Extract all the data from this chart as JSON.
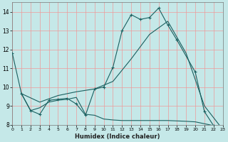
{
  "xlabel": "Humidex (Indice chaleur)",
  "xlim": [
    0,
    23
  ],
  "ylim": [
    8,
    14.5
  ],
  "yticks": [
    8,
    9,
    10,
    11,
    12,
    13,
    14
  ],
  "xticks": [
    0,
    1,
    2,
    3,
    4,
    5,
    6,
    7,
    8,
    9,
    10,
    11,
    12,
    13,
    14,
    15,
    16,
    17,
    18,
    19,
    20,
    21,
    22,
    23
  ],
  "bg_color": "#c5e8e8",
  "grid_color": "#ee9999",
  "line_color": "#1a6060",
  "line1_x": [
    0,
    1,
    2,
    3,
    4,
    5,
    6,
    7,
    8,
    9,
    10,
    11,
    12,
    13,
    14,
    15,
    16,
    17,
    18,
    20,
    21,
    22,
    23
  ],
  "line1_y": [
    11.8,
    9.65,
    8.75,
    8.55,
    9.3,
    9.35,
    9.4,
    9.1,
    8.5,
    9.9,
    10.0,
    11.05,
    13.0,
    13.85,
    13.6,
    13.7,
    14.2,
    13.3,
    12.5,
    10.8,
    8.7,
    7.95,
    7.75
  ],
  "line2_x": [
    1,
    2,
    3,
    4,
    5,
    6,
    7,
    8,
    9,
    10,
    11,
    12,
    13,
    14,
    15,
    16,
    17,
    18,
    19,
    20,
    21,
    22,
    23
  ],
  "line2_y": [
    9.65,
    8.75,
    8.9,
    9.2,
    9.3,
    9.35,
    9.45,
    8.55,
    8.5,
    8.3,
    8.25,
    8.22,
    8.22,
    8.22,
    8.22,
    8.22,
    8.22,
    8.2,
    8.18,
    8.15,
    8.05,
    7.95,
    7.75
  ],
  "line3_x": [
    1,
    3,
    5,
    7,
    9,
    11,
    13,
    15,
    17,
    19,
    21,
    23
  ],
  "line3_y": [
    9.65,
    9.2,
    9.55,
    9.75,
    9.9,
    10.3,
    11.5,
    12.8,
    13.5,
    11.8,
    9.0,
    7.75
  ]
}
